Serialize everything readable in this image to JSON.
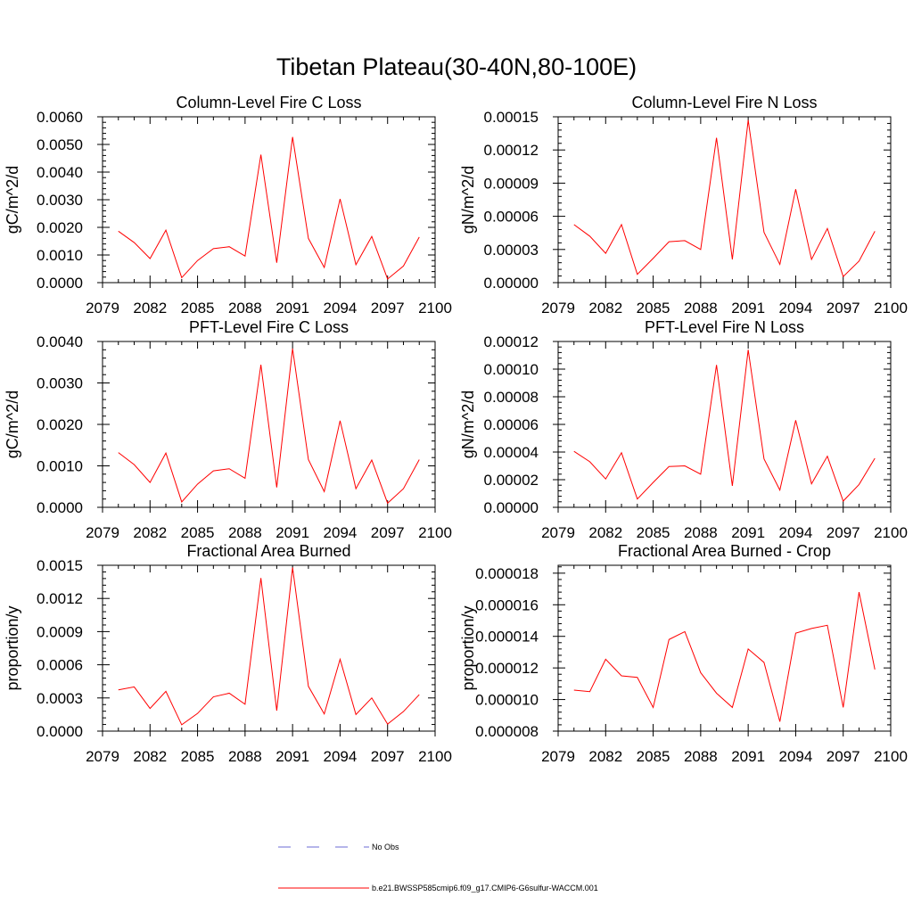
{
  "title": "Tibetan Plateau(30-40N,80-100E)",
  "legend": {
    "items": [
      {
        "label": "No Obs",
        "color": "#6b6bd6",
        "style": "dashed"
      },
      {
        "label": "b.e21.BWSSP585cmip6.f09_g17.CMIP6-G6sulfur-WACCM.001",
        "color": "#ff0000",
        "style": "solid"
      }
    ]
  },
  "chart_data": [
    {
      "type": "line",
      "title": "Column-Level Fire C Loss",
      "ylabel": "gC/m^2/d",
      "xlim": [
        2079,
        2100
      ],
      "ylim": [
        0,
        0.006
      ],
      "xticks": [
        "2079",
        "2082",
        "2085",
        "2088",
        "2091",
        "2094",
        "2097",
        "2100"
      ],
      "yticks": [
        "0.0000",
        "0.0010",
        "0.0020",
        "0.0030",
        "0.0040",
        "0.0050",
        "0.0060"
      ],
      "x": [
        2080,
        2081,
        2082,
        2083,
        2084,
        2085,
        2086,
        2087,
        2088,
        2089,
        2090,
        2091,
        2092,
        2093,
        2094,
        2095,
        2096,
        2097,
        2098,
        2099
      ],
      "series": [
        {
          "color": "#ff0000",
          "values": [
            0.00186,
            0.00145,
            0.00087,
            0.0019,
            0.00018,
            0.0008,
            0.00123,
            0.0013,
            0.00096,
            0.00463,
            0.00072,
            0.00527,
            0.0016,
            0.00055,
            0.00303,
            0.00065,
            0.00167,
            0.00013,
            0.0006,
            0.00165
          ]
        }
      ]
    },
    {
      "type": "line",
      "title": "Column-Level Fire N Loss",
      "ylabel": "gN/m^2/d",
      "xlim": [
        2079,
        2100
      ],
      "ylim": [
        0,
        0.00015
      ],
      "xticks": [
        "2079",
        "2082",
        "2085",
        "2088",
        "2091",
        "2094",
        "2097",
        "2100"
      ],
      "yticks": [
        "0.00000",
        "0.00003",
        "0.00006",
        "0.00009",
        "0.00012",
        "0.00015"
      ],
      "x": [
        2080,
        2081,
        2082,
        2083,
        2084,
        2085,
        2086,
        2087,
        2088,
        2089,
        2090,
        2091,
        2092,
        2093,
        2094,
        2095,
        2096,
        2097,
        2098,
        2099
      ],
      "series": [
        {
          "color": "#ff0000",
          "values": [
            5.25e-05,
            4.2e-05,
            2.65e-05,
            5.25e-05,
            7.5e-06,
            2.2e-05,
            3.7e-05,
            3.8e-05,
            3e-05,
            0.000131,
            2.1e-05,
            0.000147,
            4.55e-05,
            1.65e-05,
            8.45e-05,
            2.1e-05,
            4.9e-05,
            5.5e-06,
            1.95e-05,
            4.65e-05
          ]
        }
      ]
    },
    {
      "type": "line",
      "title": "PFT-Level Fire C Loss",
      "ylabel": "gC/m^2/d",
      "xlim": [
        2079,
        2100
      ],
      "ylim": [
        0,
        0.004
      ],
      "xticks": [
        "2079",
        "2082",
        "2085",
        "2088",
        "2091",
        "2094",
        "2097",
        "2100"
      ],
      "yticks": [
        "0.0000",
        "0.0010",
        "0.0020",
        "0.0030",
        "0.0040"
      ],
      "x": [
        2080,
        2081,
        2082,
        2083,
        2084,
        2085,
        2086,
        2087,
        2088,
        2089,
        2090,
        2091,
        2092,
        2093,
        2094,
        2095,
        2096,
        2097,
        2098,
        2099
      ],
      "series": [
        {
          "color": "#ff0000",
          "values": [
            0.00132,
            0.00103,
            0.0006,
            0.00131,
            0.00013,
            0.00056,
            0.00088,
            0.00093,
            0.0007,
            0.00344,
            0.00048,
            0.00383,
            0.00115,
            0.00038,
            0.00209,
            0.00045,
            0.00114,
            0.0001,
            0.00045,
            0.00115
          ]
        }
      ]
    },
    {
      "type": "line",
      "title": "PFT-Level Fire N Loss",
      "ylabel": "gN/m^2/d",
      "xlim": [
        2079,
        2100
      ],
      "ylim": [
        0,
        0.00012
      ],
      "xticks": [
        "2079",
        "2082",
        "2085",
        "2088",
        "2091",
        "2094",
        "2097",
        "2100"
      ],
      "yticks": [
        "0.00000",
        "0.00002",
        "0.00004",
        "0.00006",
        "0.00008",
        "0.00010",
        "0.00012"
      ],
      "x": [
        2080,
        2081,
        2082,
        2083,
        2084,
        2085,
        2086,
        2087,
        2088,
        2089,
        2090,
        2091,
        2092,
        2093,
        2094,
        2095,
        2096,
        2097,
        2098,
        2099
      ],
      "series": [
        {
          "color": "#ff0000",
          "values": [
            4.05e-05,
            3.3e-05,
            2.05e-05,
            3.95e-05,
            6e-06,
            1.8e-05,
            2.95e-05,
            3e-05,
            2.4e-05,
            0.000103,
            1.55e-05,
            0.000114,
            3.5e-05,
            1.25e-05,
            6.3e-05,
            1.7e-05,
            3.7e-05,
            4.5e-06,
            1.65e-05,
            3.55e-05
          ]
        }
      ]
    },
    {
      "type": "line",
      "title": "Fractional Area Burned",
      "ylabel": "proportion/y",
      "xlim": [
        2079,
        2100
      ],
      "ylim": [
        0,
        0.0015
      ],
      "xticks": [
        "2079",
        "2082",
        "2085",
        "2088",
        "2091",
        "2094",
        "2097",
        "2100"
      ],
      "yticks": [
        "0.0000",
        "0.0003",
        "0.0006",
        "0.0009",
        "0.0012",
        "0.0015"
      ],
      "x": [
        2080,
        2081,
        2082,
        2083,
        2084,
        2085,
        2086,
        2087,
        2088,
        2089,
        2090,
        2091,
        2092,
        2093,
        2094,
        2095,
        2096,
        2097,
        2098,
        2099
      ],
      "series": [
        {
          "color": "#ff0000",
          "values": [
            0.000373,
            0.0004,
            0.000205,
            0.00036,
            5.7e-05,
            0.00016,
            0.00031,
            0.000343,
            0.000243,
            0.001385,
            0.000185,
            0.00148,
            0.000405,
            0.000155,
            0.00065,
            0.00015,
            0.0003,
            6.3e-05,
            0.000177,
            0.00033
          ]
        }
      ]
    },
    {
      "type": "line",
      "title": "Fractional Area Burned - Crop",
      "ylabel": "proportion/y",
      "xlim": [
        2079,
        2100
      ],
      "ylim": [
        8e-06,
        1.85e-05
      ],
      "xticks": [
        "2079",
        "2082",
        "2085",
        "2088",
        "2091",
        "2094",
        "2097",
        "2100"
      ],
      "yticks": [
        "0.000008",
        "0.000010",
        "0.000012",
        "0.000014",
        "0.000016",
        "0.000018"
      ],
      "x": [
        2080,
        2081,
        2082,
        2083,
        2084,
        2085,
        2086,
        2087,
        2088,
        2089,
        2090,
        2091,
        2092,
        2093,
        2094,
        2095,
        2096,
        2097,
        2098,
        2099
      ],
      "series": [
        {
          "color": "#ff0000",
          "values": [
            1.06e-05,
            1.05e-05,
            1.255e-05,
            1.15e-05,
            1.14e-05,
            9.5e-06,
            1.38e-05,
            1.43e-05,
            1.17e-05,
            1.04e-05,
            9.5e-06,
            1.32e-05,
            1.235e-05,
            8.6e-06,
            1.42e-05,
            1.45e-05,
            1.47e-05,
            9.5e-06,
            1.68e-05,
            1.19e-05
          ]
        }
      ]
    }
  ]
}
